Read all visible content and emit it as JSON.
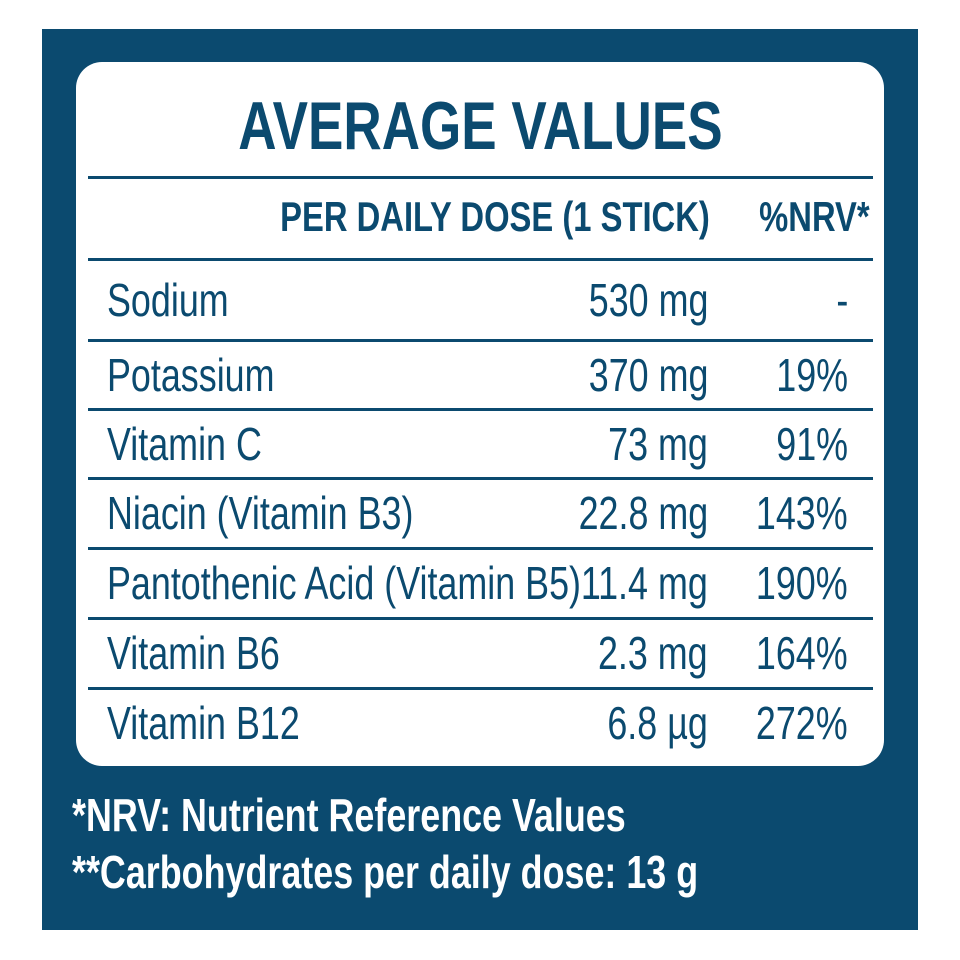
{
  "title": "AVERAGE VALUES",
  "header": {
    "amount": "PER DAILY DOSE (1 STICK)",
    "nrv": "%NRV*"
  },
  "rows": [
    {
      "name": "Sodium",
      "amount": "530 mg",
      "nrv": "-"
    },
    {
      "name": "Potassium",
      "amount": "370 mg",
      "nrv": "19%"
    },
    {
      "name": "Vitamin C",
      "amount": "73 mg",
      "nrv": "91%"
    },
    {
      "name": "Niacin (Vitamin B3)",
      "amount": "22.8 mg",
      "nrv": "143%"
    },
    {
      "name": "Pantothenic Acid (Vitamin B5)",
      "amount": "11.4 mg",
      "nrv": "190%"
    },
    {
      "name": "Vitamin B6",
      "amount": "2.3 mg",
      "nrv": "164%"
    },
    {
      "name": "Vitamin B12",
      "amount": "6.8 µg",
      "nrv": "272%"
    }
  ],
  "footnotes": [
    "*NRV: Nutrient Reference Values",
    "**Carbohydrates per daily dose: 13 g"
  ],
  "colors": {
    "brand": "#0b4a6f",
    "background": "#ffffff"
  }
}
